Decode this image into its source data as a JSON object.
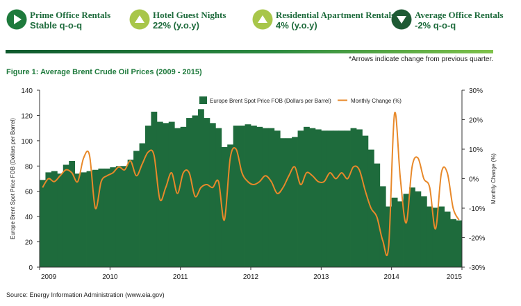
{
  "kpis": [
    {
      "title": "Prime Office Rentals",
      "value": "Stable q-o-q",
      "arrow": "right",
      "badge_color": "#1e7a3c"
    },
    {
      "title": "Hotel Guest Nights",
      "value": "22% (y.o.y)",
      "arrow": "up",
      "badge_color": "#a8c64a"
    },
    {
      "title": "Residential Apartment Rentals",
      "value": "4% (y.o.y)",
      "arrow": "up",
      "badge_color": "#a8c64a"
    },
    {
      "title": "Average Office Rentals",
      "value": "-2% q-o-q",
      "arrow": "down",
      "badge_color": "#1e5a34"
    }
  ],
  "note": "*Arrows indicate change from previous quarter.",
  "figure_title": "Figure 1: Average Brent Crude Oil Prices (2009 - 2015)",
  "source": "Source: Energy Information Administration (www.eia.gov)",
  "colors": {
    "bar": "#1e6b3c",
    "line": "#e8892a",
    "text_green": "#1e6b3c"
  },
  "chart_data": {
    "type": "bar",
    "title": "Figure 1: Average Brent Crude Oil Prices (2009 - 2015)",
    "ylabel": "Europe Brent Spot Price FOB (Dollars per Barrel)",
    "y2label": "Monthly Change (%)",
    "ylim": [
      0,
      140
    ],
    "y2lim": [
      -30,
      30
    ],
    "yticks": [
      "0",
      "20",
      "40",
      "60",
      "80",
      "100",
      "120",
      "140"
    ],
    "y2ticks": [
      "-30%",
      "-20%",
      "-10%",
      "0%",
      "10%",
      "20%",
      "30%"
    ],
    "xticks": [
      "2009",
      "2010",
      "2011",
      "2012",
      "2013",
      "2014",
      "2015"
    ],
    "grid": false,
    "legend_position": "top-center",
    "x_start": "2009-01",
    "series": [
      {
        "name": "Europe Brent Spot Price FOB (Dollars per Barrel)",
        "kind": "bar",
        "values": [
          69,
          75,
          76,
          74,
          81,
          84,
          74,
          75,
          76,
          77,
          78,
          78,
          79,
          80,
          80,
          85,
          92,
          98,
          112,
          123,
          115,
          114,
          115,
          110,
          111,
          118,
          120,
          125,
          118,
          114,
          110,
          95,
          97,
          112,
          112,
          113,
          112,
          111,
          110,
          110,
          108,
          102,
          102,
          103,
          108,
          111,
          110,
          109,
          108,
          108,
          108,
          108,
          108,
          110,
          109,
          104,
          93,
          82,
          64,
          48,
          55,
          52,
          58,
          63,
          60,
          56,
          48,
          47,
          48,
          44,
          38,
          37
        ]
      },
      {
        "name": "Monthly Change (%)",
        "kind": "line",
        "values": [
          -3,
          0,
          -1,
          1,
          3,
          2,
          -1,
          7,
          8,
          -10,
          -1,
          1,
          2,
          4,
          3,
          6,
          1,
          5,
          9,
          8,
          -7,
          -3,
          2,
          -5,
          2,
          2,
          -6,
          -3,
          -2,
          -3,
          -1,
          -14,
          7,
          10,
          2,
          -1,
          -2,
          -1,
          1,
          -1,
          -5,
          -3,
          1,
          4,
          -2,
          2,
          1,
          -1,
          -1,
          2,
          0,
          2,
          0,
          4,
          3,
          -4,
          -10,
          -13,
          -21,
          -23,
          22,
          0,
          -15,
          4,
          7,
          0,
          -3,
          -17,
          2,
          2,
          -10,
          -14
        ]
      }
    ]
  }
}
